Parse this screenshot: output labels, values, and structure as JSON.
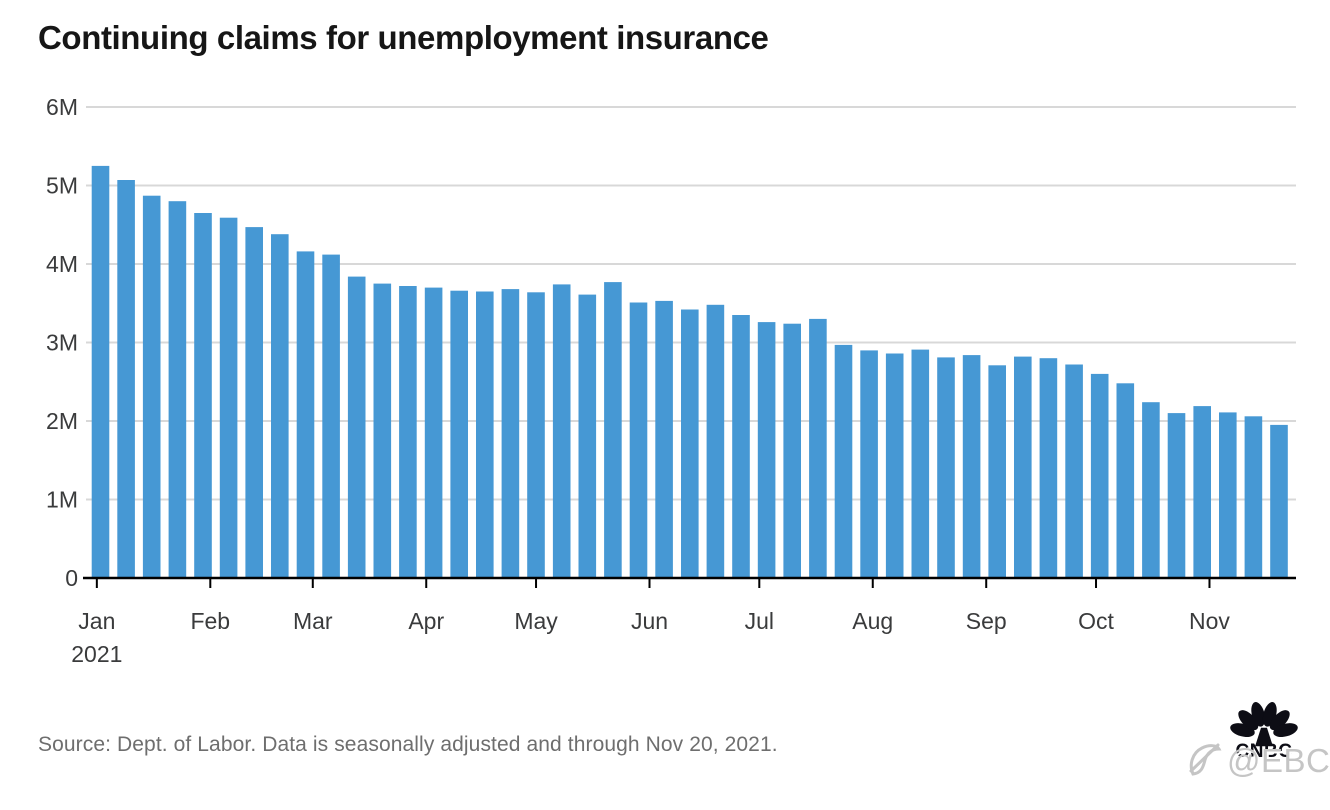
{
  "chart_data": {
    "type": "bar",
    "title": "Continuing claims for unemployment insurance",
    "xlabel": "",
    "ylabel": "",
    "unit": "millions of claims",
    "ylim": [
      0,
      6
    ],
    "grid": "horizontal",
    "legend": "none",
    "bar_color": "#4698d4",
    "x": [
      "Jan 2",
      "Jan 9",
      "Jan 16",
      "Jan 23",
      "Jan 30",
      "Feb 6",
      "Feb 13",
      "Feb 20",
      "Feb 27",
      "Mar 6",
      "Mar 13",
      "Mar 20",
      "Mar 27",
      "Apr 3",
      "Apr 10",
      "Apr 17",
      "Apr 24",
      "May 1",
      "May 8",
      "May 15",
      "May 22",
      "May 29",
      "Jun 5",
      "Jun 12",
      "Jun 19",
      "Jun 26",
      "Jul 3",
      "Jul 10",
      "Jul 17",
      "Jul 24",
      "Jul 31",
      "Aug 7",
      "Aug 14",
      "Aug 21",
      "Aug 28",
      "Sep 4",
      "Sep 11",
      "Sep 18",
      "Sep 25",
      "Oct 2",
      "Oct 9",
      "Oct 16",
      "Oct 23",
      "Oct 30",
      "Nov 6",
      "Nov 13",
      "Nov 20"
    ],
    "values": [
      5.25,
      5.07,
      4.87,
      4.8,
      4.65,
      4.59,
      4.47,
      4.38,
      4.16,
      4.12,
      3.84,
      3.75,
      3.72,
      3.7,
      3.66,
      3.65,
      3.68,
      3.64,
      3.74,
      3.61,
      3.77,
      3.51,
      3.53,
      3.42,
      3.48,
      3.35,
      3.26,
      3.24,
      3.3,
      2.97,
      2.9,
      2.86,
      2.91,
      2.81,
      2.84,
      2.71,
      2.82,
      2.8,
      2.72,
      2.6,
      2.48,
      2.24,
      2.1,
      2.19,
      2.11,
      2.06,
      1.95
    ],
    "yticks": [
      {
        "label": "6M",
        "value": 6
      },
      {
        "label": "5M",
        "value": 5
      },
      {
        "label": "4M",
        "value": 4
      },
      {
        "label": "3M",
        "value": 3
      },
      {
        "label": "2M",
        "value": 2
      },
      {
        "label": "1M",
        "value": 1
      },
      {
        "label": "0",
        "value": 0
      }
    ],
    "months": [
      {
        "label": "Jan",
        "sublabel": "2021",
        "bar_index": 0,
        "day_offset": 1
      },
      {
        "label": "Feb",
        "sublabel": "",
        "bar_index": 5,
        "day_offset": 5
      },
      {
        "label": "Mar",
        "sublabel": "",
        "bar_index": 9,
        "day_offset": 5
      },
      {
        "label": "Apr",
        "sublabel": "",
        "bar_index": 13,
        "day_offset": 2
      },
      {
        "label": "May",
        "sublabel": "",
        "bar_index": 17,
        "day_offset": 0
      },
      {
        "label": "Jun",
        "sublabel": "",
        "bar_index": 22,
        "day_offset": 4
      },
      {
        "label": "Jul",
        "sublabel": "",
        "bar_index": 26,
        "day_offset": 2
      },
      {
        "label": "Aug",
        "sublabel": "",
        "bar_index": 31,
        "day_offset": 6
      },
      {
        "label": "Sep",
        "sublabel": "",
        "bar_index": 35,
        "day_offset": 3
      },
      {
        "label": "Oct",
        "sublabel": "",
        "bar_index": 39,
        "day_offset": 1
      },
      {
        "label": "Nov",
        "sublabel": "",
        "bar_index": 44,
        "day_offset": 5
      }
    ]
  },
  "footer": {
    "source": "Source: Dept. of Labor. Data is seasonally adjusted and through Nov 20, 2021.",
    "logo_text": "CNBC",
    "watermark_text": "@EBC"
  },
  "colors": {
    "bar": "#4698d4",
    "gridline": "#d8d8d8",
    "axis": "#000000",
    "tick_label": "#3a3b3c",
    "title": "#161616",
    "source": "#6e6e6e",
    "watermark": "#c5c5c5",
    "background": "#ffffff"
  }
}
